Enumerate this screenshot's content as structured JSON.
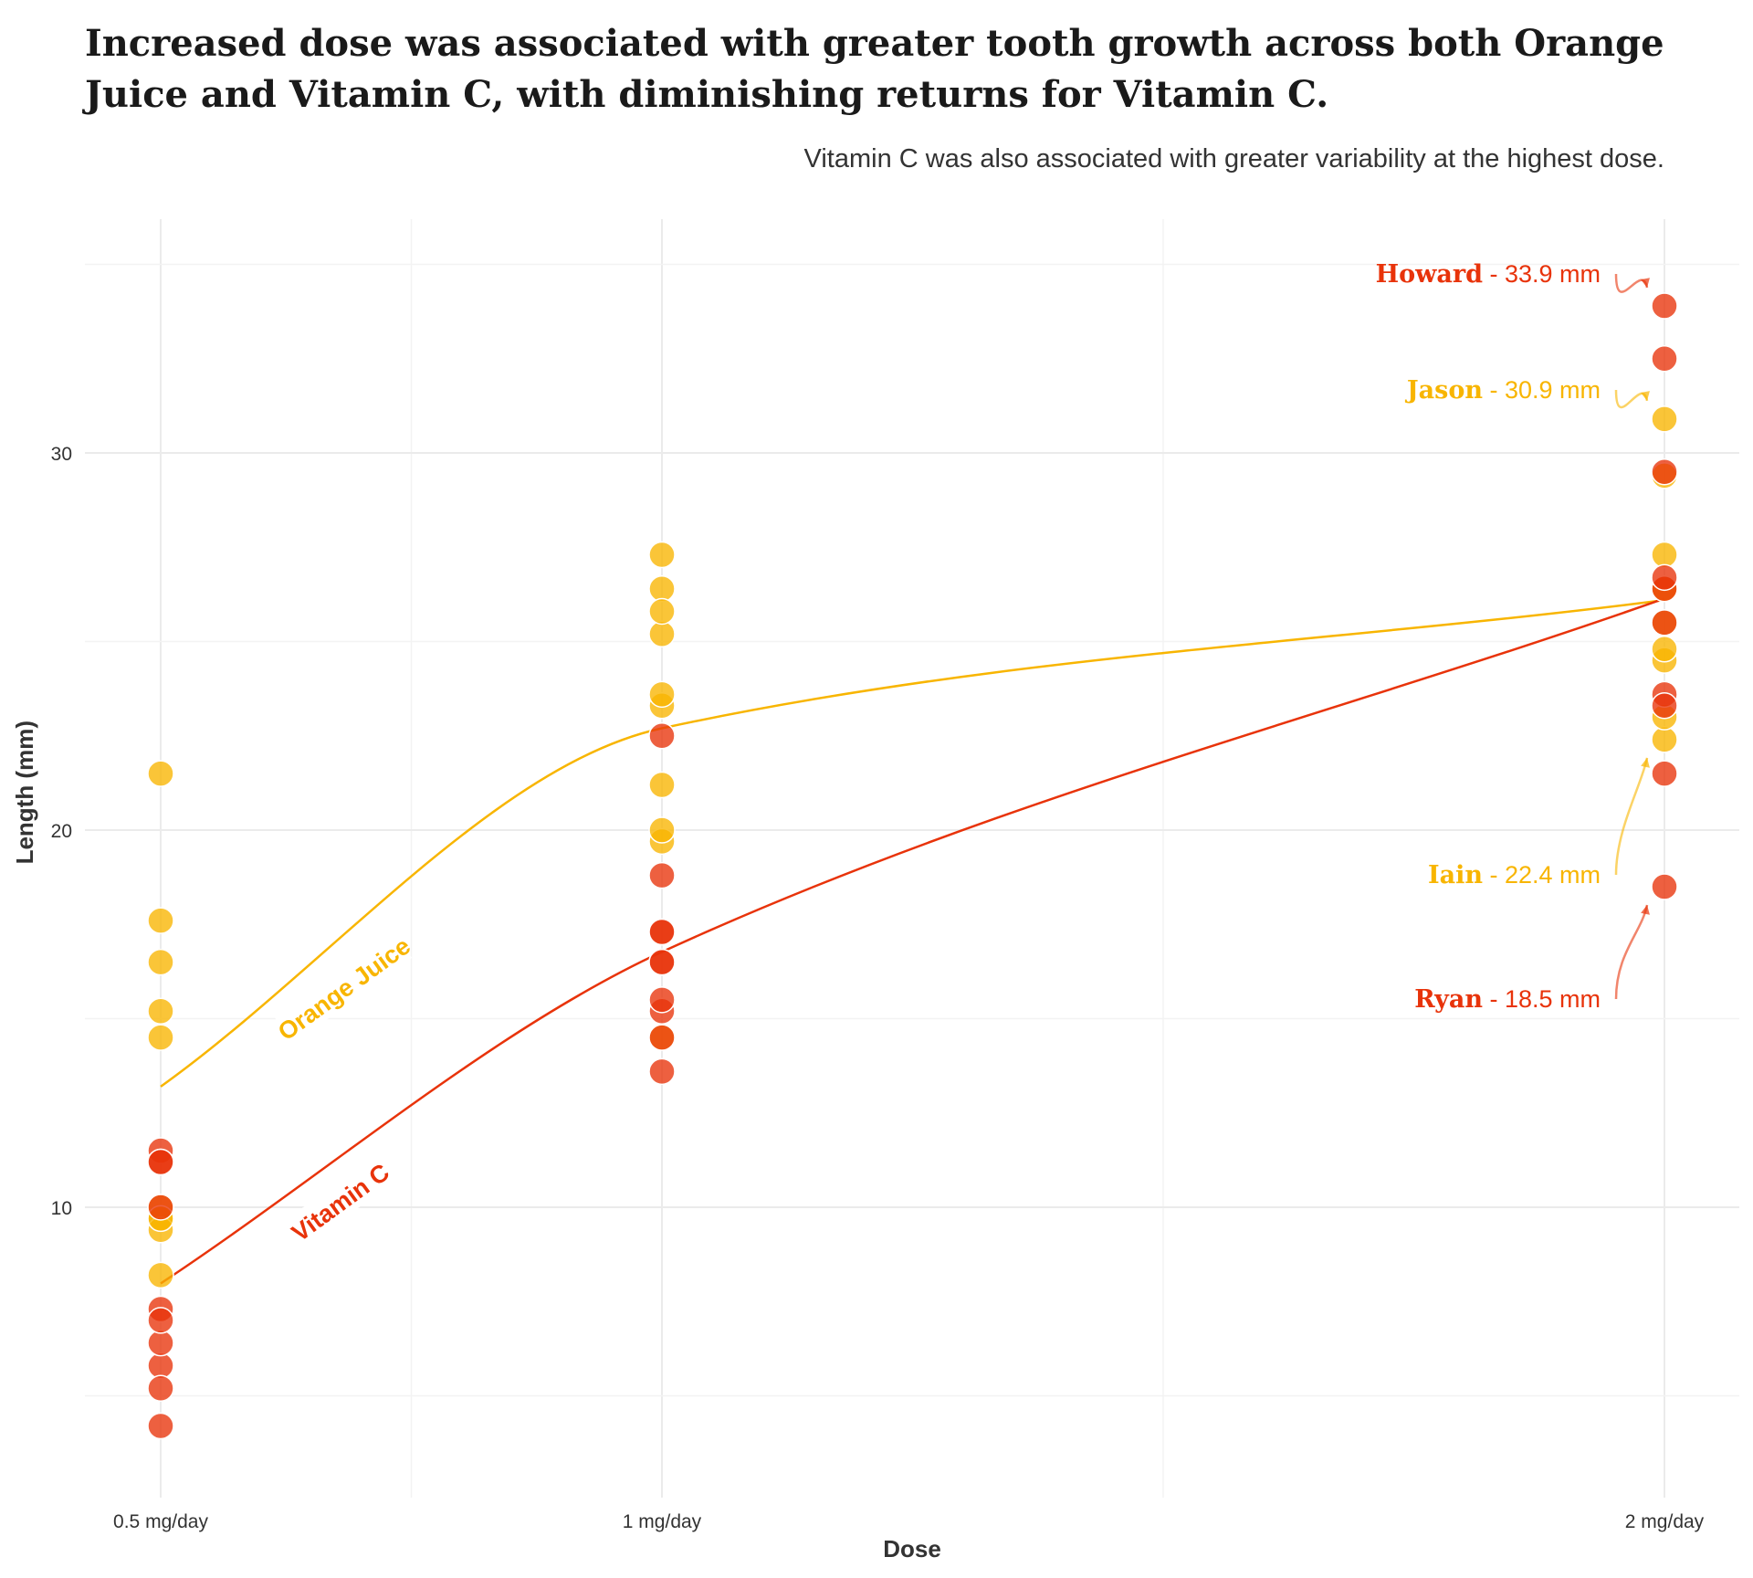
{
  "title": "Increased dose was associated with greater tooth growth across both Orange Juice and Vitamin C, with diminishing returns for Vitamin C.",
  "subtitle": "Vitamin C was also associated with greater variability at the highest dose.",
  "colors": {
    "orange_juice": "#f8b500",
    "vitamin_c": "#e8330a"
  },
  "chart_data": {
    "type": "scatter",
    "x_axis_title": "Dose",
    "y_axis_title": "Length (mm)",
    "categories": [
      "0.5 mg/day",
      "1 mg/day",
      "2 mg/day"
    ],
    "y_ticks": [
      10,
      20,
      30
    ],
    "ylim": [
      2.3,
      36.2
    ],
    "grid": true,
    "series": [
      {
        "name": "Orange Juice",
        "color": "#f8b500",
        "points": [
          {
            "dose": "0.5 mg/day",
            "values": [
              15.2,
              21.5,
              17.6,
              9.7,
              14.5,
              10.0,
              8.2,
              9.4,
              16.5,
              9.7
            ]
          },
          {
            "dose": "1 mg/day",
            "values": [
              19.7,
              23.3,
              23.6,
              26.4,
              20.0,
              25.2,
              25.8,
              21.2,
              14.5,
              27.3
            ]
          },
          {
            "dose": "2 mg/day",
            "values": [
              25.5,
              26.4,
              22.4,
              24.5,
              24.8,
              30.9,
              26.4,
              27.3,
              29.4,
              23.0
            ]
          }
        ],
        "trend": [
          13.2,
          22.7,
          26.1
        ]
      },
      {
        "name": "Vitamin C",
        "color": "#e8330a",
        "points": [
          {
            "dose": "0.5 mg/day",
            "values": [
              4.2,
              11.5,
              7.3,
              5.8,
              6.4,
              10.0,
              11.2,
              11.2,
              5.2,
              7.0
            ]
          },
          {
            "dose": "1 mg/day",
            "values": [
              16.5,
              16.5,
              15.2,
              17.3,
              22.5,
              17.3,
              13.6,
              14.5,
              18.8,
              15.5
            ]
          },
          {
            "dose": "2 mg/day",
            "values": [
              23.6,
              18.5,
              33.9,
              25.5,
              26.4,
              32.5,
              26.7,
              21.5,
              23.3,
              29.5
            ]
          }
        ],
        "trend": [
          7.98,
          16.77,
          26.14
        ]
      }
    ],
    "curve_labels": [
      {
        "text": "Orange Juice",
        "series": "Orange Juice"
      },
      {
        "text": "Vitamin C",
        "series": "Vitamin C"
      }
    ],
    "annotations": [
      {
        "name": "Howard",
        "value_text": "33.9 mm",
        "value": 33.9,
        "series": "Vitamin C"
      },
      {
        "name": "Jason",
        "value_text": "30.9 mm",
        "value": 30.9,
        "series": "Orange Juice"
      },
      {
        "name": "Iain",
        "value_text": "22.4 mm",
        "value": 22.4,
        "series": "Orange Juice"
      },
      {
        "name": "Ryan",
        "value_text": "18.5 mm",
        "value": 18.5,
        "series": "Vitamin C"
      }
    ],
    "annotation_separator": " - "
  }
}
